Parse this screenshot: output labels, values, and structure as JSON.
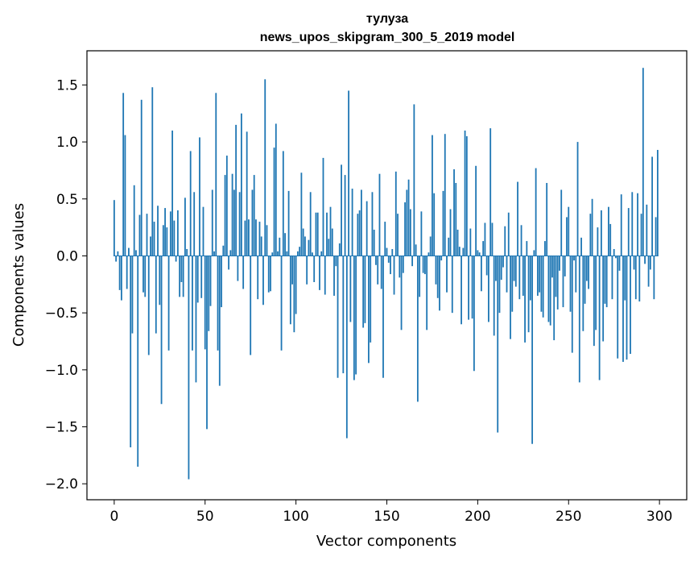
{
  "chart_data": {
    "type": "bar",
    "title": "тулуза",
    "subtitle": "news_upos_skipgram_300_5_2019 model",
    "xlabel": "Vector components",
    "ylabel": "Components values",
    "xlim": [
      -15,
      315
    ],
    "ylim": [
      -2.14,
      1.8
    ],
    "xticks": [
      0,
      50,
      100,
      150,
      200,
      250,
      300
    ],
    "yticks": [
      -2.0,
      -1.5,
      -1.0,
      -0.5,
      0.0,
      0.5,
      1.0,
      1.5
    ],
    "xtick_labels": [
      "0",
      "50",
      "100",
      "150",
      "200",
      "250",
      "300"
    ],
    "ytick_labels": [
      "−2.0",
      "−1.5",
      "−1.0",
      "−0.5",
      "0.0",
      "0.5",
      "1.0",
      "1.5"
    ],
    "bar_color": "#1f77b4",
    "grid": false,
    "values": [
      0.49,
      -0.05,
      0.04,
      -0.3,
      -0.39,
      1.43,
      1.06,
      -0.29,
      0.07,
      -1.68,
      -0.68,
      0.62,
      0.05,
      -1.85,
      0.36,
      1.37,
      -0.32,
      -0.36,
      0.37,
      -0.87,
      0.17,
      1.48,
      0.3,
      -0.68,
      0.44,
      -0.43,
      -1.3,
      0.27,
      0.42,
      0.25,
      -0.83,
      0.39,
      1.1,
      0.31,
      -0.05,
      0.4,
      -0.36,
      -0.23,
      -0.36,
      0.51,
      0.06,
      -1.96,
      0.92,
      -0.83,
      0.56,
      -1.11,
      -0.41,
      1.04,
      -0.37,
      0.43,
      -0.82,
      -1.52,
      -0.66,
      -0.44,
      0.58,
      0.04,
      1.43,
      -0.83,
      -1.14,
      -0.45,
      0.09,
      0.71,
      0.88,
      -0.12,
      0.05,
      0.72,
      0.58,
      1.15,
      -0.22,
      0.56,
      1.25,
      -0.29,
      0.31,
      1.09,
      0.32,
      -0.87,
      0.58,
      0.71,
      0.32,
      -0.38,
      0.3,
      0.17,
      -0.43,
      1.55,
      0.27,
      -0.32,
      -0.31,
      0.03,
      0.95,
      1.16,
      0.04,
      0.16,
      -0.83,
      0.92,
      0.2,
      0.04,
      0.57,
      -0.6,
      -0.25,
      -0.67,
      -0.51,
      0.04,
      0.08,
      0.73,
      0.24,
      0.17,
      -0.25,
      0.14,
      0.56,
      0.03,
      -0.23,
      0.38,
      0.38,
      -0.3,
      0.04,
      0.86,
      -0.34,
      0.38,
      0.15,
      0.43,
      0.24,
      -0.35,
      -0.09,
      -1.07,
      0.11,
      0.8,
      -1.03,
      0.71,
      -1.6,
      1.45,
      -0.58,
      0.59,
      -1.09,
      -1.04,
      0.37,
      0.4,
      0.58,
      -0.63,
      -0.59,
      0.48,
      -0.94,
      -0.76,
      0.56,
      0.23,
      -0.08,
      -0.25,
      0.72,
      -0.29,
      -1.07,
      0.3,
      0.07,
      -0.06,
      -0.16,
      0.06,
      -0.34,
      0.74,
      0.37,
      -0.19,
      -0.65,
      -0.15,
      0.47,
      0.58,
      0.67,
      0.41,
      -0.09,
      1.33,
      0.1,
      -1.28,
      -0.36,
      0.39,
      -0.15,
      -0.16,
      -0.65,
      0.03,
      0.17,
      1.06,
      0.55,
      -0.25,
      -0.37,
      -0.48,
      -0.04,
      0.57,
      1.07,
      -0.32,
      0.16,
      0.41,
      -0.5,
      0.76,
      0.64,
      0.23,
      0.08,
      -0.6,
      0.07,
      1.1,
      1.05,
      -0.56,
      0.24,
      -0.55,
      -1.01,
      0.79,
      0.05,
      0.03,
      -0.31,
      0.13,
      0.29,
      -0.17,
      -0.58,
      1.12,
      0.29,
      -0.7,
      -0.22,
      -1.55,
      -0.5,
      -0.21,
      -0.1,
      0.26,
      -0.32,
      0.38,
      -0.73,
      -0.49,
      -0.22,
      -0.27,
      0.65,
      -0.38,
      0.27,
      -0.35,
      -0.76,
      0.13,
      -0.67,
      -0.39,
      -1.65,
      0.05,
      0.77,
      -0.35,
      -0.32,
      -0.49,
      -0.54,
      0.13,
      0.64,
      -0.58,
      -0.61,
      -0.19,
      -0.74,
      -0.36,
      -0.47,
      -0.13,
      0.58,
      -0.45,
      -0.18,
      0.34,
      0.43,
      -0.49,
      -0.85,
      -0.04,
      -0.32,
      1.0,
      -1.11,
      0.16,
      -0.66,
      -0.42,
      -0.22,
      -0.29,
      0.37,
      0.5,
      -0.79,
      -0.65,
      0.25,
      -1.09,
      0.4,
      -0.75,
      -0.42,
      -0.45,
      0.43,
      0.28,
      -0.38,
      0.06,
      -0.02,
      -0.9,
      -0.13,
      0.54,
      -0.93,
      -0.39,
      -0.91,
      0.42,
      -0.86,
      0.56,
      -0.12,
      -0.38,
      0.55,
      -0.4,
      0.37,
      1.65,
      -0.07,
      0.45,
      -0.27,
      -0.12,
      0.87,
      -0.38,
      0.34,
      0.93
    ]
  }
}
